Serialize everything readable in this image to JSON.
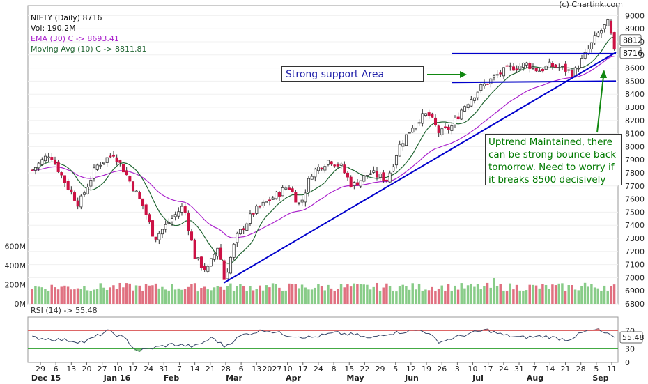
{
  "credit": "(c) Chartink.com",
  "legend": {
    "title": "NIFTY (Daily) 8716",
    "volume": "Vol: 190.2M",
    "ema": "EMA (30) C -> 8693.41",
    "ma": "Moving Avg (10) C -> 8811.81",
    "rsi": "RSI (14) -> 55.48"
  },
  "annotations": {
    "support": "Strong support Area",
    "uptrend": "Uptrend Maintained, there can be strong bounce back tomorrow. Need to worry if it breaks 8500 decisively"
  },
  "colors": {
    "up": "#ffffff",
    "down": "#cc1144",
    "ema": "#aa22cc",
    "ma": "#226633",
    "trendline": "#0000cc",
    "vol_up": "#88cc88",
    "vol_down": "#e07080",
    "rsi_line": "#334466",
    "rsi_over": "#dd6666",
    "rsi_under": "#44aa44"
  },
  "chart_data": {
    "type": "candlestick",
    "price_axis": {
      "ticks": [
        6800,
        6900,
        7000,
        7100,
        7200,
        7300,
        7400,
        7500,
        7600,
        7700,
        7800,
        7900,
        8000,
        8100,
        8200,
        8300,
        8400,
        8500,
        8600,
        8700,
        8800,
        8900,
        9000
      ],
      "ylim": [
        6800,
        9050
      ]
    },
    "volume_axis": {
      "ticks": [
        "0M",
        "200M",
        "400M",
        "600M"
      ],
      "values": [
        0,
        200,
        400,
        600
      ],
      "ylim": [
        0,
        700
      ]
    },
    "rsi_axis": {
      "ticks": [
        0,
        30,
        70
      ],
      "ylim": [
        0,
        100
      ]
    },
    "value_tags": [
      {
        "label": "8812",
        "value": 8812
      },
      {
        "label": "8716",
        "value": 8716
      }
    ],
    "x_tick_labels": [
      "29",
      "6",
      "13",
      "20",
      "27",
      "10",
      "17",
      "24",
      "31",
      "7",
      "14",
      "21",
      "28",
      "6",
      "13",
      "2027",
      "10",
      "17",
      "24",
      "8",
      "15",
      "22",
      "29",
      "5",
      "12",
      "19",
      "26",
      "3",
      "10",
      "17",
      "24",
      "31",
      "7",
      "14",
      "21",
      "28",
      "5",
      "11"
    ],
    "month_labels": [
      "Dec 15",
      "Jan 16",
      "Feb",
      "Mar",
      "Apr",
      "May",
      "Jun",
      "Jul",
      "Aug",
      "Sep"
    ],
    "trendlines": [
      {
        "name": "support-upper",
        "from": [
          0.72,
          8710
        ],
        "to": [
          1.0,
          8710
        ]
      },
      {
        "name": "support-lower",
        "from": [
          0.72,
          8490
        ],
        "to": [
          1.0,
          8500
        ]
      },
      {
        "name": "uptrend",
        "from": [
          0.33,
          6960
        ],
        "to": [
          1.0,
          8720
        ]
      }
    ],
    "keypoints": [
      [
        0,
        7820
      ],
      [
        0.03,
        7950
      ],
      [
        0.06,
        7700
      ],
      [
        0.08,
        7560
      ],
      [
        0.11,
        7850
      ],
      [
        0.14,
        7950
      ],
      [
        0.16,
        7800
      ],
      [
        0.19,
        7550
      ],
      [
        0.21,
        7300
      ],
      [
        0.24,
        7450
      ],
      [
        0.26,
        7550
      ],
      [
        0.28,
        7150
      ],
      [
        0.3,
        7050
      ],
      [
        0.32,
        7250
      ],
      [
        0.33,
        6980
      ],
      [
        0.35,
        7300
      ],
      [
        0.38,
        7500
      ],
      [
        0.41,
        7600
      ],
      [
        0.44,
        7700
      ],
      [
        0.46,
        7550
      ],
      [
        0.48,
        7800
      ],
      [
        0.51,
        7900
      ],
      [
        0.53,
        7850
      ],
      [
        0.55,
        7700
      ],
      [
        0.58,
        7800
      ],
      [
        0.61,
        7750
      ],
      [
        0.63,
        8000
      ],
      [
        0.66,
        8200
      ],
      [
        0.68,
        8250
      ],
      [
        0.7,
        8100
      ],
      [
        0.72,
        8150
      ],
      [
        0.74,
        8300
      ],
      [
        0.77,
        8450
      ],
      [
        0.8,
        8550
      ],
      [
        0.82,
        8600
      ],
      [
        0.85,
        8630
      ],
      [
        0.87,
        8580
      ],
      [
        0.89,
        8620
      ],
      [
        0.91,
        8600
      ],
      [
        0.93,
        8560
      ],
      [
        0.95,
        8700
      ],
      [
        0.97,
        8850
      ],
      [
        0.99,
        8950
      ],
      [
        1.0,
        8716
      ]
    ],
    "rsi_keypoints": [
      [
        0,
        55
      ],
      [
        0.05,
        50
      ],
      [
        0.09,
        45
      ],
      [
        0.13,
        70
      ],
      [
        0.16,
        52
      ],
      [
        0.18,
        25
      ],
      [
        0.2,
        30
      ],
      [
        0.24,
        40
      ],
      [
        0.28,
        35
      ],
      [
        0.31,
        55
      ],
      [
        0.33,
        35
      ],
      [
        0.36,
        60
      ],
      [
        0.4,
        72
      ],
      [
        0.44,
        60
      ],
      [
        0.48,
        55
      ],
      [
        0.52,
        65
      ],
      [
        0.56,
        60
      ],
      [
        0.58,
        52
      ],
      [
        0.6,
        62
      ],
      [
        0.64,
        68
      ],
      [
        0.67,
        72
      ],
      [
        0.7,
        45
      ],
      [
        0.74,
        60
      ],
      [
        0.78,
        72
      ],
      [
        0.81,
        60
      ],
      [
        0.84,
        55
      ],
      [
        0.88,
        58
      ],
      [
        0.92,
        50
      ],
      [
        0.95,
        68
      ],
      [
        0.97,
        72
      ],
      [
        1.0,
        55.48
      ]
    ]
  }
}
